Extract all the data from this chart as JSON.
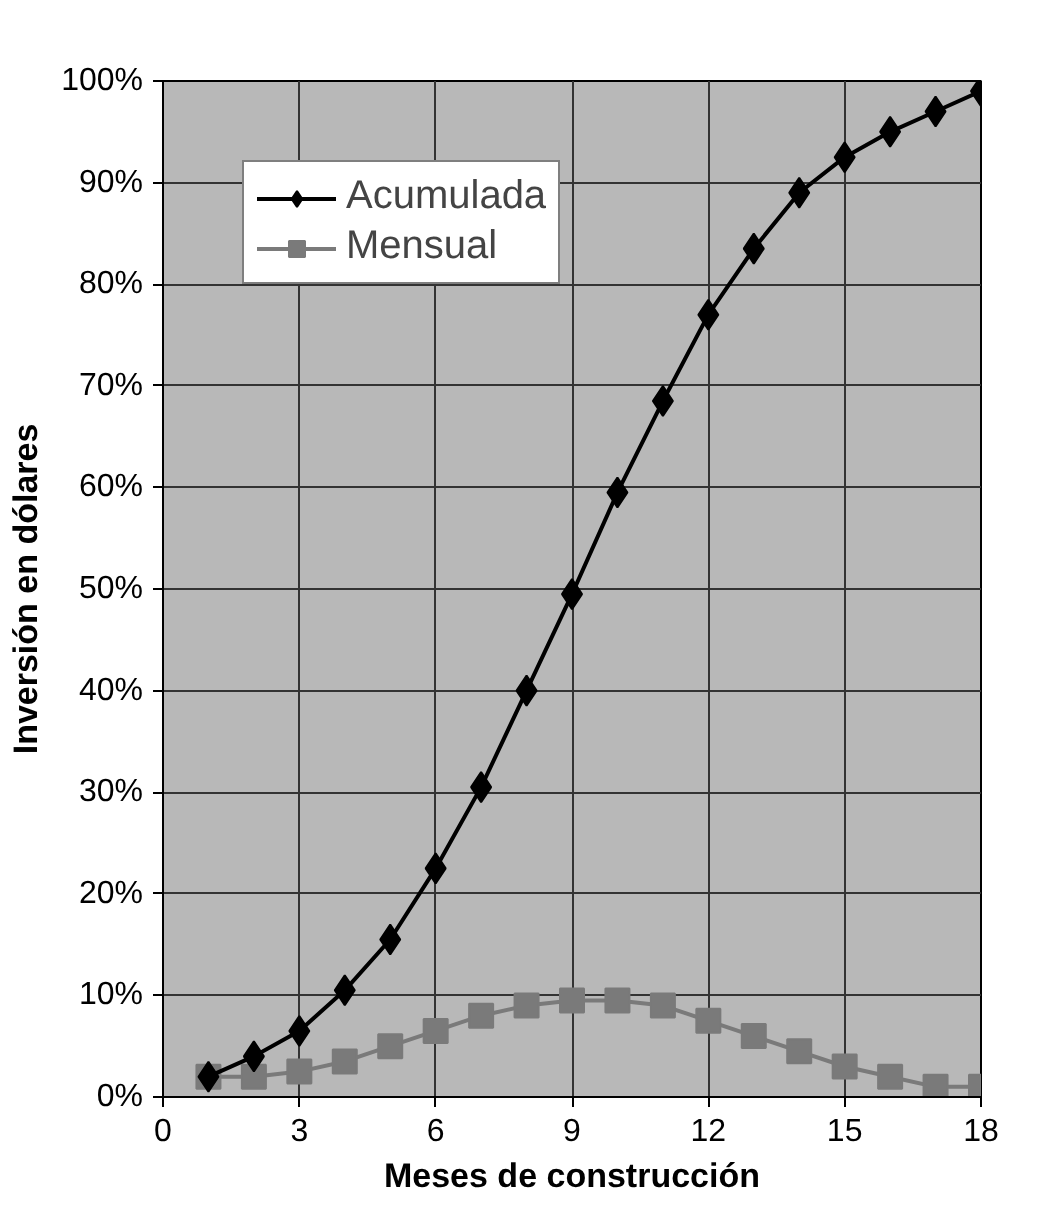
{
  "chart_data": {
    "type": "line",
    "xlabel": "Meses de construcción",
    "ylabel": "Inversión en dólares",
    "x": [
      1,
      2,
      3,
      4,
      5,
      6,
      7,
      8,
      9,
      10,
      11,
      12,
      13,
      14,
      15,
      16,
      17,
      18
    ],
    "series": [
      {
        "name": "Acumulada",
        "color": "#000000",
        "marker": "diamond",
        "values": [
          2,
          4,
          6.5,
          10.5,
          15.5,
          22.5,
          30.5,
          40,
          49.5,
          59.5,
          68.5,
          77,
          83.5,
          89,
          92.5,
          95,
          97,
          99
        ]
      },
      {
        "name": "Mensual",
        "color": "#7a7a7a",
        "marker": "square",
        "values": [
          2,
          2,
          2.5,
          3.5,
          5,
          6.5,
          8,
          9,
          9.5,
          9.5,
          9,
          7.5,
          6,
          4.5,
          3,
          2,
          1,
          1
        ]
      }
    ],
    "xlim": [
      0,
      18
    ],
    "xticks": [
      0,
      3,
      6,
      9,
      12,
      15,
      18
    ],
    "ylim": [
      0,
      100
    ],
    "yticks": [
      {
        "value": 0,
        "label": "0%"
      },
      {
        "value": 10,
        "label": "10%"
      },
      {
        "value": 20,
        "label": "20%"
      },
      {
        "value": 30,
        "label": "30%"
      },
      {
        "value": 40,
        "label": "40%"
      },
      {
        "value": 50,
        "label": "50%"
      },
      {
        "value": 60,
        "label": "60%"
      },
      {
        "value": 70,
        "label": "70%"
      },
      {
        "value": 80,
        "label": "80%"
      },
      {
        "value": 90,
        "label": "90%"
      },
      {
        "value": 100,
        "label": "100%"
      }
    ],
    "grid": true,
    "legend": "top left",
    "line_style": "solid"
  }
}
